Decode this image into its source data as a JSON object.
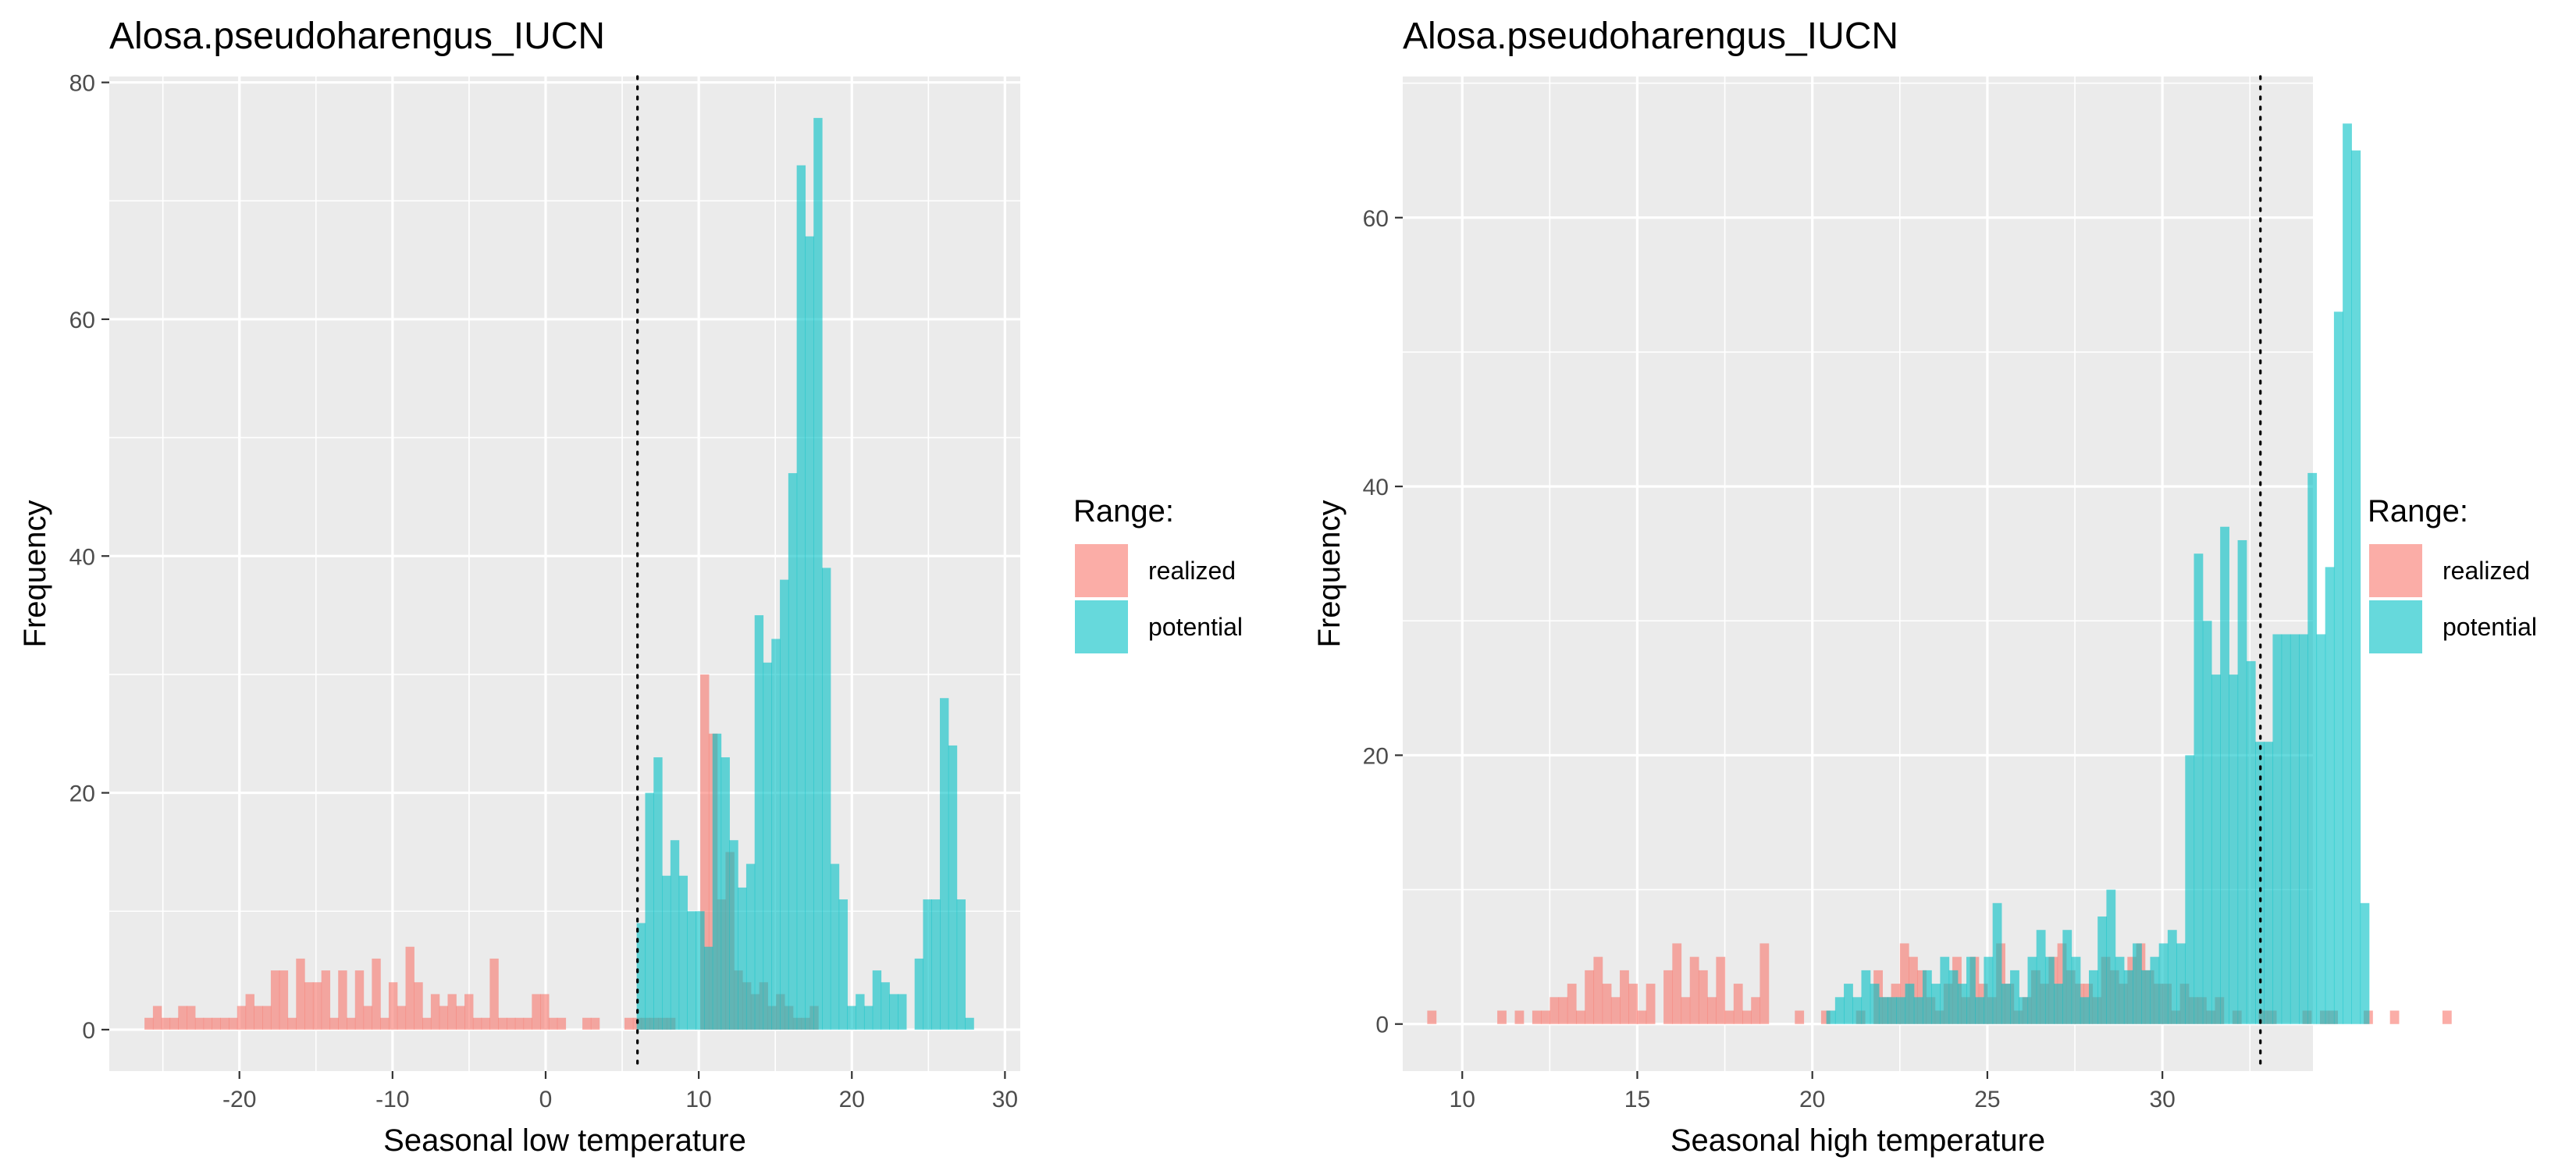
{
  "colors": {
    "realized": "#F8766D",
    "potential": "#00BFC4",
    "panel_bg": "#EBEBEB",
    "grid": "#FFFFFF"
  },
  "chart_data": [
    {
      "type": "histogram",
      "title": "Alosa.pseudoharengus_IUCN",
      "xlabel": "Seasonal low temperature",
      "ylabel": "Frequency",
      "xlim": [
        -28.5,
        31
      ],
      "ylim": [
        -3.5,
        80.5
      ],
      "xticks": [
        -20,
        -10,
        0,
        10,
        20,
        30
      ],
      "yticks": [
        0,
        20,
        40,
        60,
        80
      ],
      "binwidth": 0.55,
      "vline": 6,
      "legend": {
        "title": "Range:",
        "position": "right",
        "entries": [
          "realized",
          "potential"
        ]
      },
      "series": [
        {
          "name": "realized",
          "x_start": -26.2,
          "values": [
            1,
            2,
            1,
            1,
            2,
            2,
            1,
            1,
            1,
            1,
            1,
            2,
            3,
            2,
            2,
            5,
            5,
            1,
            6,
            4,
            4,
            5,
            1,
            5,
            1,
            5,
            2,
            6,
            1,
            4,
            2,
            7,
            4,
            1,
            3,
            2,
            3,
            2,
            3,
            1,
            1,
            6,
            1,
            1,
            1,
            1,
            3,
            3,
            1,
            1,
            0,
            0,
            1,
            1,
            0,
            0,
            0,
            1,
            1,
            1,
            1,
            1,
            1,
            0,
            0,
            0,
            30,
            25,
            11,
            15,
            5,
            4,
            3,
            4,
            2,
            3,
            2,
            1,
            1,
            2
          ]
        },
        {
          "name": "potential",
          "x_start": 5.95,
          "values": [
            9,
            20,
            23,
            13,
            16,
            13,
            10,
            10,
            7,
            25,
            23,
            16,
            12,
            14,
            35,
            31,
            33,
            38,
            47,
            73,
            67,
            77,
            39,
            14,
            11,
            2,
            3,
            2,
            5,
            4,
            3,
            3,
            0,
            6,
            11,
            11,
            28,
            24,
            11,
            1
          ]
        }
      ]
    },
    {
      "type": "histogram",
      "title": "Alosa.pseudoharengus_IUCN",
      "xlabel": "Seasonal high temperature",
      "ylabel": "Frequency",
      "xlim": [
        8.3,
        34.3
      ],
      "ylim": [
        -3.5,
        70.5
      ],
      "xticks": [
        10,
        15,
        20,
        25,
        30
      ],
      "yticks": [
        0,
        20,
        40,
        60
      ],
      "binwidth": 0.25,
      "vline": 32.8,
      "legend": {
        "title": "Range:",
        "position": "right",
        "entries": [
          "realized",
          "potential"
        ]
      },
      "series": [
        {
          "name": "realized",
          "x_start": 9.0,
          "values": [
            1,
            0,
            0,
            0,
            0,
            0,
            0,
            0,
            1,
            0,
            1,
            0,
            1,
            1,
            2,
            2,
            3,
            1,
            4,
            5,
            3,
            2,
            4,
            3,
            1,
            3,
            0,
            4,
            6,
            2,
            5,
            4,
            2,
            5,
            1,
            3,
            1,
            2,
            6,
            0,
            0,
            0,
            1,
            0,
            0,
            1,
            0,
            0,
            0,
            1,
            0,
            4,
            2,
            3,
            6,
            5,
            4,
            2,
            1,
            3,
            5,
            2,
            5,
            3,
            2,
            6,
            3,
            1,
            2,
            4,
            3,
            5,
            6,
            4,
            3,
            3,
            2,
            5,
            4,
            3,
            5,
            6,
            4,
            3,
            3,
            1,
            3,
            2,
            2,
            1,
            2,
            0,
            1,
            0,
            0,
            1,
            1,
            0,
            0,
            0,
            1,
            0,
            1,
            1,
            0,
            0,
            0,
            1,
            0,
            0,
            1,
            0,
            0,
            0,
            0,
            0,
            1
          ]
        },
        {
          "name": "potential",
          "x_start": 20.4,
          "values": [
            1,
            2,
            3,
            2,
            4,
            3,
            2,
            2,
            2,
            3,
            2,
            4,
            3,
            5,
            4,
            3,
            5,
            2,
            5,
            9,
            3,
            4,
            2,
            5,
            7,
            5,
            3,
            7,
            5,
            2,
            4,
            8,
            10,
            5,
            4,
            6,
            4,
            5,
            6,
            7,
            6,
            20,
            35,
            30,
            26,
            37,
            26,
            36,
            27,
            21,
            21,
            29,
            29,
            29,
            29,
            41,
            29,
            34,
            53,
            67,
            65,
            9
          ]
        }
      ]
    }
  ]
}
